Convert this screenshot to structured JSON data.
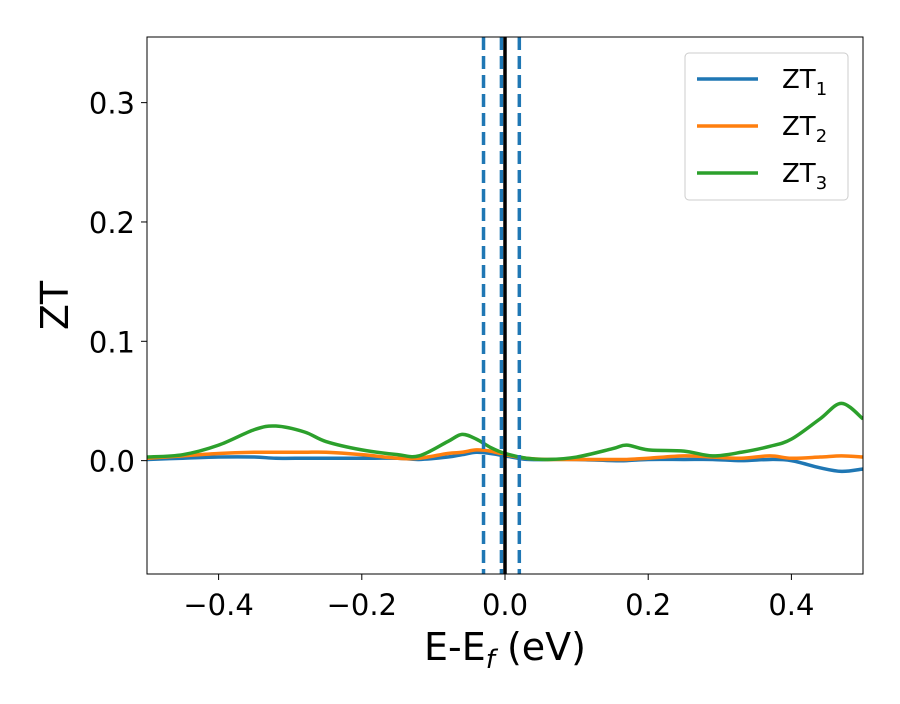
{
  "chart_data": {
    "type": "line",
    "title": "",
    "xlabel": {
      "main": "E-E",
      "sub": "f",
      "unit": " (eV)"
    },
    "ylabel": "ZT",
    "xlim": [
      -0.5,
      0.5
    ],
    "ylim": [
      -0.095,
      0.355
    ],
    "x_ticks": [
      -0.4,
      -0.2,
      0.0,
      0.2,
      0.4
    ],
    "x_tick_labels": [
      "−0.4",
      "−0.2",
      "0.0",
      "0.2",
      "0.4"
    ],
    "y_ticks": [
      0.0,
      0.1,
      0.2,
      0.3
    ],
    "y_tick_labels": [
      "0.0",
      "0.1",
      "0.2",
      "0.3"
    ],
    "grid": false,
    "legend_position": "top-right",
    "vertical_lines": [
      {
        "x": -0.03,
        "color": "#1f77b4",
        "style": "dashed"
      },
      {
        "x": -0.005,
        "color": "#1f77b4",
        "style": "dashed"
      },
      {
        "x": 0.0,
        "color": "#000000",
        "style": "solid"
      },
      {
        "x": 0.02,
        "color": "#1f77b4",
        "style": "dashed"
      }
    ],
    "x": [
      -0.5,
      -0.45,
      -0.4,
      -0.35,
      -0.32,
      -0.28,
      -0.25,
      -0.2,
      -0.15,
      -0.12,
      -0.08,
      -0.06,
      -0.04,
      -0.02,
      0.0,
      0.03,
      0.06,
      0.1,
      0.15,
      0.17,
      0.2,
      0.25,
      0.29,
      0.33,
      0.37,
      0.4,
      0.44,
      0.47,
      0.5
    ],
    "series": [
      {
        "name": "ZT",
        "subscript": "1",
        "color": "#1f77b4",
        "values": [
          0.001,
          0.002,
          0.003,
          0.003,
          0.002,
          0.002,
          0.002,
          0.002,
          0.002,
          0.001,
          0.003,
          0.005,
          0.007,
          0.006,
          0.004,
          0.001,
          0.001,
          0.001,
          0.0,
          0.0,
          0.001,
          0.001,
          0.001,
          0.0,
          0.001,
          0.0,
          -0.006,
          -0.009,
          -0.007
        ]
      },
      {
        "name": "ZT",
        "subscript": "2",
        "color": "#ff7f0e",
        "values": [
          0.002,
          0.004,
          0.006,
          0.007,
          0.007,
          0.007,
          0.007,
          0.005,
          0.002,
          0.002,
          0.006,
          0.007,
          0.009,
          0.008,
          0.005,
          0.002,
          0.001,
          0.001,
          0.001,
          0.001,
          0.002,
          0.004,
          0.003,
          0.002,
          0.004,
          0.002,
          0.003,
          0.004,
          0.003
        ]
      },
      {
        "name": "ZT",
        "subscript": "3",
        "color": "#2ca02c",
        "values": [
          0.003,
          0.005,
          0.013,
          0.026,
          0.029,
          0.024,
          0.016,
          0.009,
          0.005,
          0.004,
          0.016,
          0.022,
          0.018,
          0.011,
          0.006,
          0.002,
          0.001,
          0.003,
          0.01,
          0.013,
          0.009,
          0.008,
          0.004,
          0.007,
          0.012,
          0.018,
          0.035,
          0.048,
          0.035
        ]
      }
    ]
  }
}
